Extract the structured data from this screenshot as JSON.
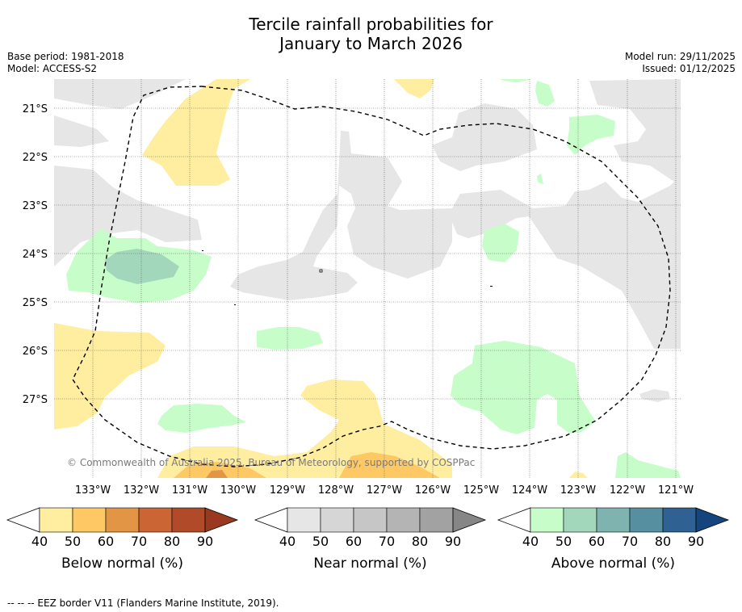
{
  "title": {
    "line1": "Tercile rainfall probabilities for",
    "line2": "January to March 2026"
  },
  "meta": {
    "base_period": "Base period: 1981-2018",
    "model": "Model: ACCESS-S2",
    "model_run": "Model run: 29/11/2025",
    "issued": "Issued: 01/12/2025"
  },
  "map": {
    "lat_labels": [
      "21°S",
      "22°S",
      "23°S",
      "24°S",
      "25°S",
      "26°S",
      "27°S"
    ],
    "lon_labels": [
      "133°W",
      "132°W",
      "131°W",
      "130°W",
      "129°W",
      "128°W",
      "127°W",
      "126°W",
      "125°W",
      "124°W",
      "123°W",
      "122°W",
      "121°W"
    ],
    "copyright": "© Commonwealth of Australia 2025, Bureau of Meteorology, supported by COSPPac",
    "eez_marker": "q"
  },
  "colorbars": [
    {
      "name": "below",
      "label": "Below normal (%)",
      "ticks": [
        "40",
        "50",
        "60",
        "70",
        "80",
        "90"
      ],
      "colors": [
        "#ffeda0",
        "#fec965",
        "#e39546",
        "#cc6534",
        "#b04a29",
        "#99391f"
      ]
    },
    {
      "name": "near",
      "label": "Near normal (%)",
      "ticks": [
        "40",
        "50",
        "60",
        "70",
        "80",
        "90"
      ],
      "colors": [
        "#e6e6e6",
        "#d6d6d6",
        "#c6c6c6",
        "#b4b4b4",
        "#a2a2a2",
        "#868686"
      ]
    },
    {
      "name": "above",
      "label": "Above normal (%)",
      "ticks": [
        "40",
        "50",
        "60",
        "70",
        "80",
        "90"
      ],
      "colors": [
        "#c7fdc9",
        "#a2d7bb",
        "#7fb3af",
        "#5690a0",
        "#2f6192",
        "#14457e"
      ]
    }
  ],
  "footnote": "--  --  -- EEZ border V11 (Flanders Marine Institute, 2019).",
  "palette": {
    "below_40": "#ffeda0",
    "below_50": "#fec965",
    "below_60": "#e39546",
    "near_40": "#e6e6e6",
    "above_40": "#c7fdc9",
    "above_50": "#a2d7bb"
  }
}
